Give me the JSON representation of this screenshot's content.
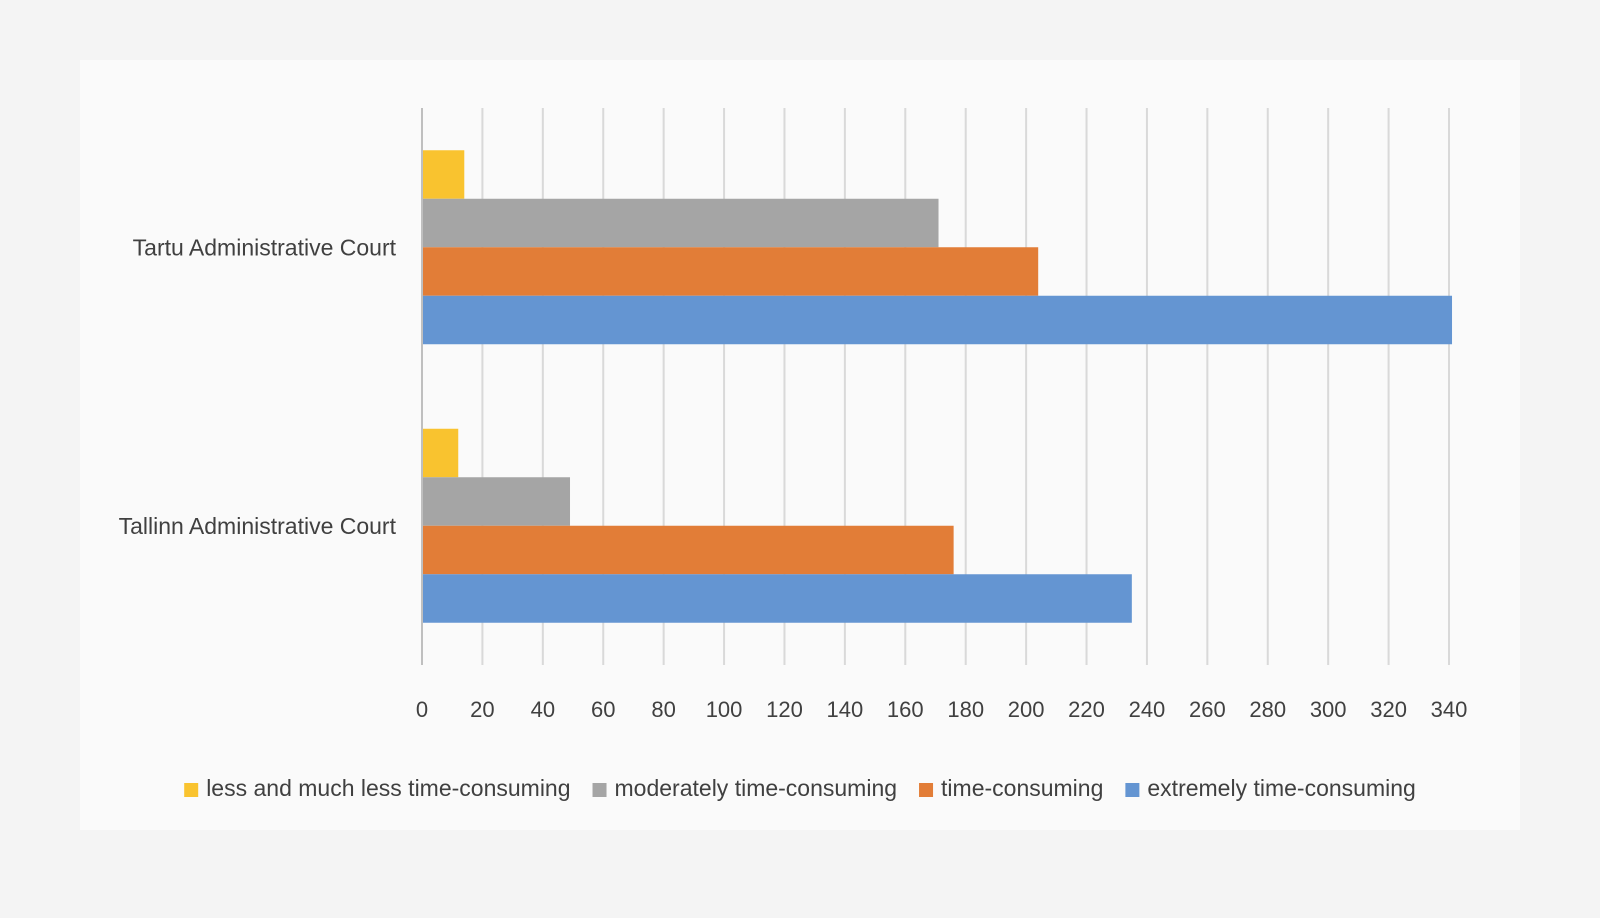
{
  "chart_data": {
    "type": "bar",
    "orientation": "horizontal",
    "categories": [
      "Tartu Administrative Court",
      "Tallinn Administrative Court"
    ],
    "series": [
      {
        "name": "less and much less time-consuming",
        "color": "#f9c32f",
        "values": [
          14,
          12
        ]
      },
      {
        "name": "moderately time-consuming",
        "color": "#a5a5a5",
        "values": [
          171,
          49
        ]
      },
      {
        "name": "time-consuming",
        "color": "#e27d37",
        "values": [
          204,
          176
        ]
      },
      {
        "name": "extremely time-consuming",
        "color": "#6495d2",
        "values": [
          341,
          235
        ]
      }
    ],
    "xlim": [
      0,
      340
    ],
    "xticks": [
      0,
      20,
      40,
      60,
      80,
      100,
      120,
      140,
      160,
      180,
      200,
      220,
      240,
      260,
      280,
      300,
      320,
      340
    ],
    "grid": true,
    "legend": "bottom",
    "title": "",
    "xlabel": "",
    "ylabel": ""
  }
}
